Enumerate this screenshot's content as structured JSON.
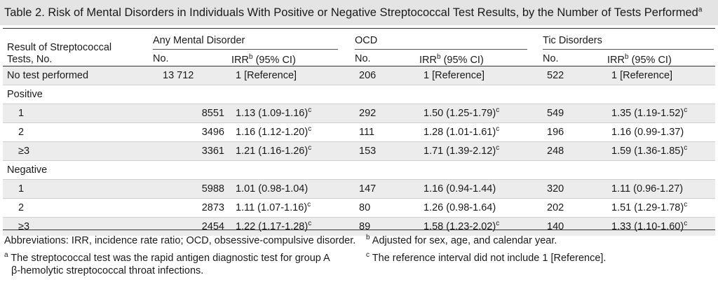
{
  "title": "Table 2. Risk of Mental Disorders in Individuals With Positive or Negative Streptococcal Test Results, by the Number of Tests Performed",
  "title_sup": "a",
  "stub_header_line1": "Result of Streptococcal",
  "stub_header_line2": "Tests, No.",
  "groups": [
    "Any Mental Disorder",
    "OCD",
    "Tic Disorders"
  ],
  "col_no": "No.",
  "col_irr": "IRR",
  "col_irr_sup": "b",
  "col_irr_ci": " (95% CI)",
  "rows": [
    {
      "label": "No test performed",
      "cells": [
        "13 712",
        "1 [Reference]",
        "",
        "206",
        "1 [Reference]",
        "",
        "522",
        "1 [Reference]",
        ""
      ]
    },
    {
      "label": "Positive",
      "cells": [
        "",
        "",
        "",
        "",
        "",
        "",
        "",
        "",
        ""
      ]
    },
    {
      "label": "1",
      "cells": [
        "8551",
        "1.13 (1.09-1.16)",
        "c",
        "292",
        "1.50 (1.25-1.79)",
        "c",
        "549",
        "1.35 (1.19-1.52)",
        "c"
      ]
    },
    {
      "label": "2",
      "cells": [
        "3496",
        "1.16 (1.12-1.20)",
        "c",
        "111",
        "1.28 (1.01-1.61)",
        "c",
        "196",
        "1.16 (0.99-1.37)",
        ""
      ]
    },
    {
      "label": "≥3",
      "cells": [
        "3361",
        "1.21 (1.16-1.26)",
        "c",
        "153",
        "1.71 (1.39-2.12)",
        "c",
        "248",
        "1.59 (1.36-1.85)",
        "c"
      ]
    },
    {
      "label": "Negative",
      "cells": [
        "",
        "",
        "",
        "",
        "",
        "",
        "",
        "",
        ""
      ]
    },
    {
      "label": "1",
      "cells": [
        "5988",
        "1.01 (0.98-1.04)",
        "",
        "147",
        "1.16 (0.94-1.44)",
        "",
        "320",
        "1.11 (0.96-1.27)",
        ""
      ]
    },
    {
      "label": "2",
      "cells": [
        "2873",
        "1.11 (1.07-1.16)",
        "c",
        "80",
        "1.26 (0.98-1.64)",
        "",
        "202",
        "1.51 (1.29-1.78)",
        "c"
      ]
    },
    {
      "label": "≥3",
      "cells": [
        "2454",
        "1.22 (1.17-1.28)",
        "c",
        "89",
        "1.58 (1.23-2.02)",
        "c",
        "140",
        "1.33 (1.10-1.60)",
        "c"
      ]
    }
  ],
  "footnotes": {
    "abbrev": "Abbreviations: IRR, incidence rate ratio; OCD, obsessive-compulsive disorder.",
    "a_mark": "a",
    "a_line1": " The streptococcal test was the rapid antigen diagnostic test for group A",
    "a_line2": "β-hemolytic streptococcal throat infections.",
    "b_mark": "b",
    "b_text": " Adjusted for sex, age, and calendar year.",
    "c_mark": "c",
    "c_text": " The reference interval did not include 1 [Reference]."
  },
  "colors": {
    "title_bg": "#e4e4e4",
    "shade": "#ececec"
  }
}
